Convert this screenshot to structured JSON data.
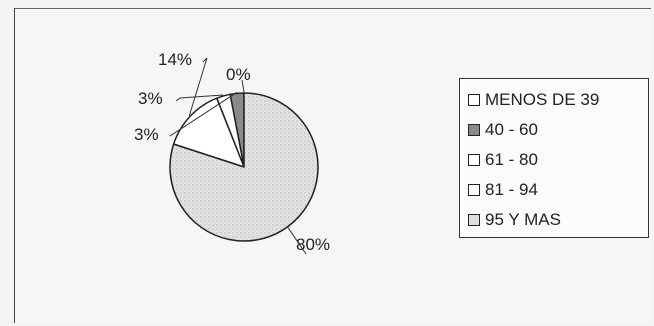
{
  "chart_data": {
    "type": "pie",
    "title": "",
    "categories": [
      "MENOS DE 39",
      "40 - 60",
      "61 - 80",
      "81 - 94",
      "95 Y MAS"
    ],
    "values": [
      0,
      3,
      3,
      14,
      80
    ],
    "labels": [
      "0%",
      "3%",
      "3%",
      "14%",
      "80%"
    ],
    "colors": [
      "#ffffff",
      "#8a8a8a",
      "#ffffff",
      "#ffffff",
      "#dedede"
    ],
    "legend_position": "right"
  }
}
